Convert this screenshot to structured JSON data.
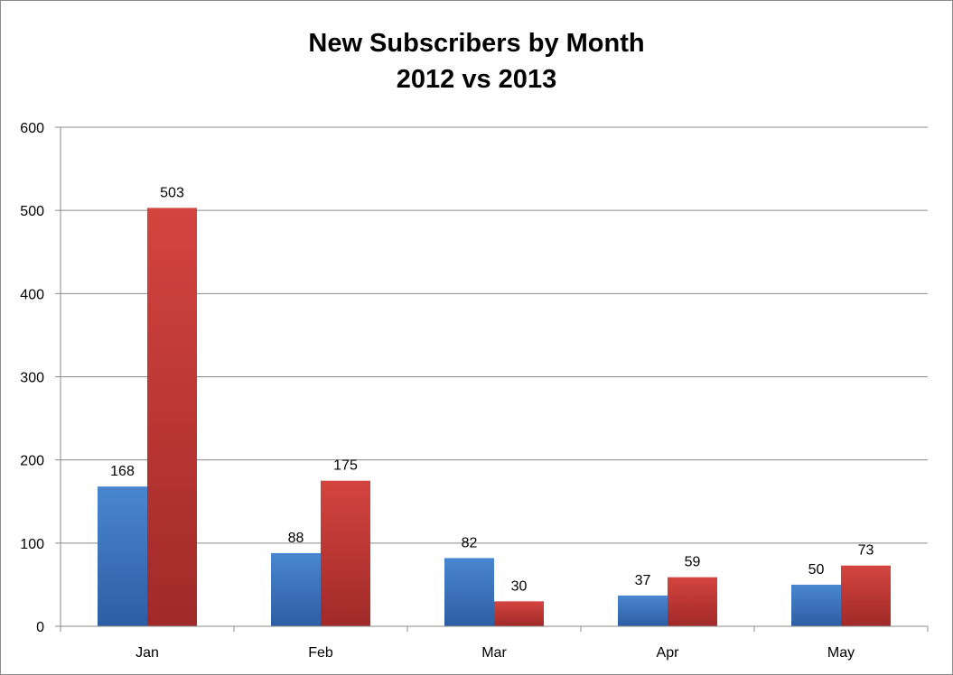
{
  "chart_data": {
    "type": "bar",
    "title_lines": [
      "New Subscribers by Month",
      "2012 vs 2013"
    ],
    "categories": [
      "Jan",
      "Feb",
      "Mar",
      "Apr",
      "May"
    ],
    "series": [
      {
        "values": [
          168,
          88,
          82,
          37,
          50
        ],
        "color": "#3f77c0"
      },
      {
        "values": [
          503,
          175,
          30,
          59,
          73
        ],
        "color": "#c83a38"
      }
    ],
    "ylim": [
      0,
      600
    ],
    "yticks": [
      0,
      100,
      200,
      300,
      400,
      500,
      600
    ],
    "grid": true,
    "legend": "none",
    "xlabel": "",
    "ylabel": ""
  }
}
